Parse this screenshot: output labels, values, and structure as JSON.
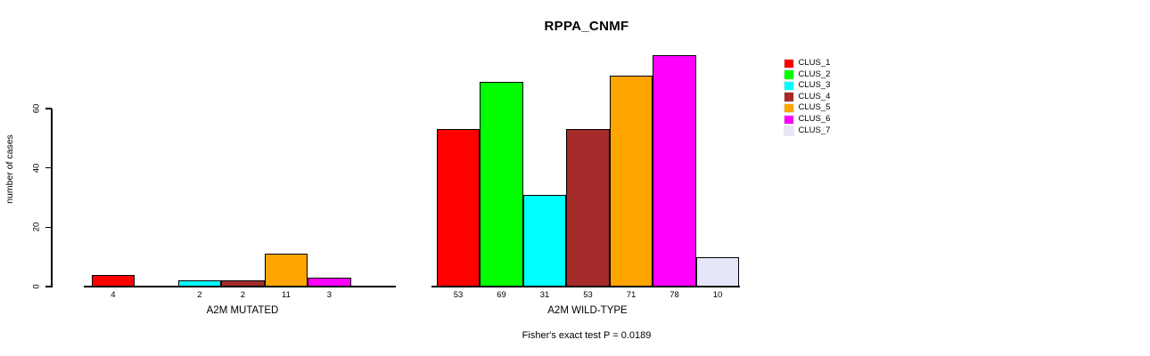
{
  "chart_data": {
    "type": "bar",
    "title": "RPPA_CNMF",
    "ylabel": "number of cases",
    "ylim": [
      0,
      60
    ],
    "yticks": [
      0,
      20,
      40,
      60
    ],
    "grid": false,
    "legend_position": "right",
    "categories": [
      "CLUS_1",
      "CLUS_2",
      "CLUS_3",
      "CLUS_4",
      "CLUS_5",
      "CLUS_6",
      "CLUS_7"
    ],
    "colors": [
      "#FF0000",
      "#00FF00",
      "#00FFFF",
      "#A52A2A",
      "#FFA500",
      "#FF00FF",
      "#E6E6FA"
    ],
    "series": [
      {
        "name": "A2M MUTATED",
        "values": [
          4,
          0,
          2,
          2,
          11,
          3,
          0
        ]
      },
      {
        "name": "A2M WILD-TYPE",
        "values": [
          53,
          69,
          31,
          53,
          71,
          78,
          10
        ]
      }
    ],
    "bar_value_labels_shown": true,
    "annotation": "Fisher's exact test P = 0.0189"
  }
}
